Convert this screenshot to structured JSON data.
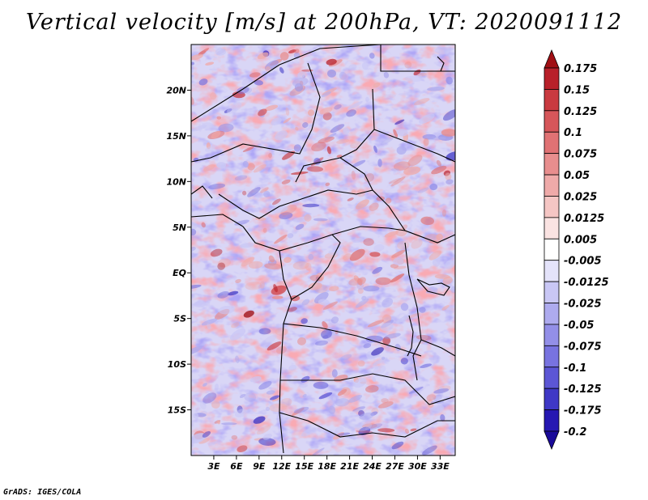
{
  "title": "Vertical velocity [m/s] at 200hPa, VT: 2020091112",
  "footer": "GrADS: IGES/COLA",
  "chart_data": {
    "type": "heatmap",
    "title": "Vertical velocity [m/s] at 200hPa, VT: 2020091112",
    "variable": "Vertical velocity",
    "units": "m/s",
    "level": "200hPa",
    "valid_time": "2020091112",
    "xlim": [
      0,
      35
    ],
    "ylim": [
      -20,
      25
    ],
    "x_ticks": [
      {
        "value": 3,
        "label": "3E"
      },
      {
        "value": 6,
        "label": "6E"
      },
      {
        "value": 9,
        "label": "9E"
      },
      {
        "value": 12,
        "label": "12E"
      },
      {
        "value": 15,
        "label": "15E"
      },
      {
        "value": 18,
        "label": "18E"
      },
      {
        "value": 21,
        "label": "21E"
      },
      {
        "value": 24,
        "label": "24E"
      },
      {
        "value": 27,
        "label": "27E"
      },
      {
        "value": 30,
        "label": "30E"
      },
      {
        "value": 33,
        "label": "33E"
      }
    ],
    "y_ticks": [
      {
        "value": 20,
        "label": "20N"
      },
      {
        "value": 15,
        "label": "15N"
      },
      {
        "value": 10,
        "label": "10N"
      },
      {
        "value": 5,
        "label": "5N"
      },
      {
        "value": 0,
        "label": "EQ"
      },
      {
        "value": -5,
        "label": "5S"
      },
      {
        "value": -10,
        "label": "10S"
      },
      {
        "value": -15,
        "label": "15S"
      }
    ],
    "colorbar": {
      "labels": [
        "0.175",
        "0.15",
        "0.125",
        "0.1",
        "0.075",
        "0.05",
        "0.025",
        "0.0125",
        "0.005",
        "-0.005",
        "-0.0125",
        "-0.025",
        "-0.05",
        "-0.075",
        "-0.1",
        "-0.125",
        "-0.175",
        "-0.2"
      ],
      "colors": [
        "#a00f14",
        "#b8202a",
        "#c93a40",
        "#d6565a",
        "#e07274",
        "#e88e8e",
        "#efaaa9",
        "#f5c6c4",
        "#fae3e2",
        "#ffffff",
        "#e4e3fa",
        "#c9c7f5",
        "#aeabef",
        "#938fe8",
        "#7873e0",
        "#5c56d5",
        "#3f38c6",
        "#2618b2",
        "#1a0a99"
      ]
    }
  }
}
